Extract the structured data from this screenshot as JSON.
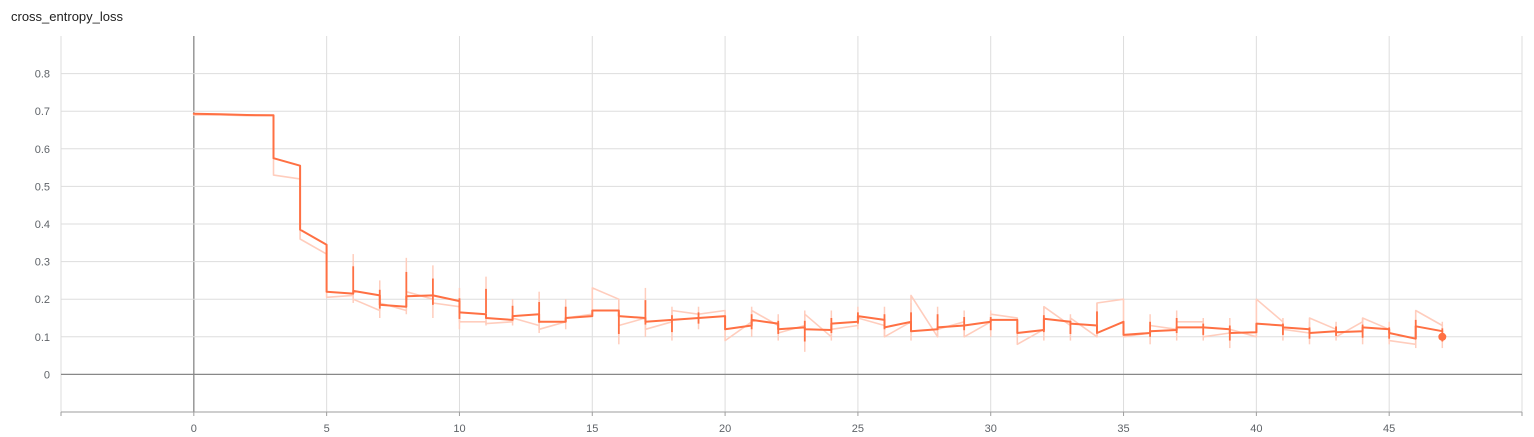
{
  "chart_data": {
    "type": "line",
    "title": "cross_entropy_loss",
    "xlabel": "",
    "ylabel": "",
    "xlim": [
      -5,
      50
    ],
    "ylim": [
      -0.1,
      0.9
    ],
    "xticks": [
      0,
      5,
      10,
      15,
      20,
      25,
      30,
      35,
      40,
      45
    ],
    "yticks": [
      0,
      0.1,
      0.2,
      0.3,
      0.4,
      0.5,
      0.6,
      0.7,
      0.8
    ],
    "grid": true,
    "legend": "none",
    "colors": {
      "smoothed": "#ff7043",
      "raw": "#ffcdbd",
      "grid": "#dddddd",
      "axis": "#9e9e9e"
    },
    "series": [
      {
        "kind": "smoothed",
        "x": [
          0,
          1,
          2,
          3,
          3,
          4,
          4,
          5,
          5,
          6,
          6,
          7,
          7,
          8,
          8,
          9,
          9,
          10,
          10,
          11,
          11,
          12,
          12,
          13,
          13,
          14,
          14,
          15,
          15,
          16,
          16,
          17,
          17,
          18,
          18,
          19,
          19,
          20,
          20,
          21,
          21,
          22,
          22,
          23,
          23,
          24,
          24,
          25,
          25,
          26,
          26,
          27,
          27,
          28,
          28,
          29,
          29,
          30,
          30,
          31,
          31,
          32,
          32,
          33,
          33,
          34,
          34,
          35,
          35,
          36,
          36,
          37,
          37,
          38,
          38,
          39,
          39,
          40,
          40,
          41,
          41,
          42,
          42,
          43,
          43,
          44,
          44,
          45,
          45,
          46,
          46,
          47
        ],
        "y": [
          0.693,
          0.692,
          0.69,
          0.689,
          0.575,
          0.555,
          0.385,
          0.345,
          0.22,
          0.215,
          0.222,
          0.21,
          0.185,
          0.18,
          0.208,
          0.21,
          0.21,
          0.195,
          0.165,
          0.16,
          0.15,
          0.145,
          0.155,
          0.16,
          0.14,
          0.14,
          0.15,
          0.155,
          0.17,
          0.17,
          0.155,
          0.15,
          0.14,
          0.145,
          0.145,
          0.15,
          0.15,
          0.155,
          0.12,
          0.13,
          0.145,
          0.135,
          0.12,
          0.125,
          0.12,
          0.118,
          0.135,
          0.14,
          0.155,
          0.145,
          0.125,
          0.14,
          0.115,
          0.12,
          0.125,
          0.13,
          0.13,
          0.14,
          0.145,
          0.145,
          0.11,
          0.118,
          0.148,
          0.14,
          0.135,
          0.13,
          0.11,
          0.14,
          0.105,
          0.11,
          0.115,
          0.118,
          0.125,
          0.125,
          0.125,
          0.12,
          0.11,
          0.112,
          0.135,
          0.13,
          0.125,
          0.12,
          0.11,
          0.115,
          0.112,
          0.115,
          0.125,
          0.12,
          0.11,
          0.095,
          0.128,
          0.115
        ]
      },
      {
        "kind": "raw",
        "x": [
          0,
          1,
          2,
          3,
          3,
          4,
          4,
          5,
          5,
          6,
          6,
          7,
          7,
          8,
          8,
          9,
          9,
          10,
          10,
          11,
          11,
          12,
          12,
          13,
          13,
          14,
          14,
          15,
          15,
          16,
          16,
          17,
          17,
          18,
          18,
          19,
          19,
          20,
          20,
          21,
          21,
          22,
          22,
          23,
          23,
          24,
          24,
          25,
          25,
          26,
          26,
          27,
          27,
          28,
          28,
          29,
          29,
          30,
          30,
          31,
          31,
          32,
          32,
          33,
          33,
          34,
          34,
          35,
          35,
          36,
          36,
          37,
          37,
          38,
          38,
          39,
          39,
          40,
          40,
          41,
          41,
          42,
          42,
          43,
          43,
          44,
          44,
          45,
          45,
          46,
          46,
          47
        ],
        "y": [
          0.69,
          0.69,
          0.688,
          0.688,
          0.53,
          0.52,
          0.36,
          0.32,
          0.205,
          0.21,
          0.2,
          0.17,
          0.19,
          0.17,
          0.22,
          0.2,
          0.19,
          0.18,
          0.14,
          0.14,
          0.135,
          0.14,
          0.15,
          0.13,
          0.12,
          0.14,
          0.15,
          0.16,
          0.23,
          0.2,
          0.13,
          0.15,
          0.12,
          0.14,
          0.17,
          0.16,
          0.16,
          0.17,
          0.09,
          0.14,
          0.17,
          0.13,
          0.11,
          0.13,
          0.16,
          0.1,
          0.12,
          0.13,
          0.15,
          0.13,
          0.1,
          0.14,
          0.21,
          0.1,
          0.12,
          0.14,
          0.1,
          0.14,
          0.16,
          0.15,
          0.08,
          0.12,
          0.18,
          0.13,
          0.15,
          0.1,
          0.19,
          0.2,
          0.1,
          0.11,
          0.13,
          0.12,
          0.14,
          0.14,
          0.1,
          0.11,
          0.12,
          0.1,
          0.2,
          0.14,
          0.12,
          0.11,
          0.15,
          0.12,
          0.1,
          0.14,
          0.15,
          0.12,
          0.09,
          0.08,
          0.17,
          0.13
        ]
      }
    ],
    "raw_spikes": [
      {
        "x": 6,
        "y0": 0.19,
        "y1": 0.32
      },
      {
        "x": 7,
        "y0": 0.15,
        "y1": 0.25
      },
      {
        "x": 8,
        "y0": 0.16,
        "y1": 0.31
      },
      {
        "x": 9,
        "y0": 0.15,
        "y1": 0.29
      },
      {
        "x": 10,
        "y0": 0.12,
        "y1": 0.23
      },
      {
        "x": 11,
        "y0": 0.13,
        "y1": 0.26
      },
      {
        "x": 12,
        "y0": 0.13,
        "y1": 0.2
      },
      {
        "x": 13,
        "y0": 0.11,
        "y1": 0.22
      },
      {
        "x": 14,
        "y0": 0.12,
        "y1": 0.2
      },
      {
        "x": 16,
        "y0": 0.08,
        "y1": 0.19
      },
      {
        "x": 17,
        "y0": 0.1,
        "y1": 0.23
      },
      {
        "x": 18,
        "y0": 0.09,
        "y1": 0.18
      },
      {
        "x": 19,
        "y0": 0.12,
        "y1": 0.18
      },
      {
        "x": 21,
        "y0": 0.1,
        "y1": 0.18
      },
      {
        "x": 22,
        "y0": 0.09,
        "y1": 0.16
      },
      {
        "x": 23,
        "y0": 0.06,
        "y1": 0.17
      },
      {
        "x": 24,
        "y0": 0.09,
        "y1": 0.17
      },
      {
        "x": 25,
        "y0": 0.12,
        "y1": 0.18
      },
      {
        "x": 26,
        "y0": 0.1,
        "y1": 0.18
      },
      {
        "x": 27,
        "y0": 0.09,
        "y1": 0.19
      },
      {
        "x": 28,
        "y0": 0.1,
        "y1": 0.18
      },
      {
        "x": 29,
        "y0": 0.1,
        "y1": 0.17
      },
      {
        "x": 30,
        "y0": 0.1,
        "y1": 0.17
      },
      {
        "x": 32,
        "y0": 0.09,
        "y1": 0.18
      },
      {
        "x": 33,
        "y0": 0.09,
        "y1": 0.16
      },
      {
        "x": 34,
        "y0": 0.1,
        "y1": 0.19
      },
      {
        "x": 36,
        "y0": 0.08,
        "y1": 0.16
      },
      {
        "x": 37,
        "y0": 0.09,
        "y1": 0.17
      },
      {
        "x": 38,
        "y0": 0.09,
        "y1": 0.15
      },
      {
        "x": 39,
        "y0": 0.07,
        "y1": 0.15
      },
      {
        "x": 41,
        "y0": 0.09,
        "y1": 0.15
      },
      {
        "x": 42,
        "y0": 0.08,
        "y1": 0.14
      },
      {
        "x": 43,
        "y0": 0.09,
        "y1": 0.14
      },
      {
        "x": 44,
        "y0": 0.08,
        "y1": 0.15
      },
      {
        "x": 45,
        "y0": 0.08,
        "y1": 0.14
      },
      {
        "x": 46,
        "y0": 0.07,
        "y1": 0.17
      },
      {
        "x": 47,
        "y0": 0.07,
        "y1": 0.14
      }
    ],
    "last_point": {
      "x": 47,
      "y": 0.1
    }
  }
}
